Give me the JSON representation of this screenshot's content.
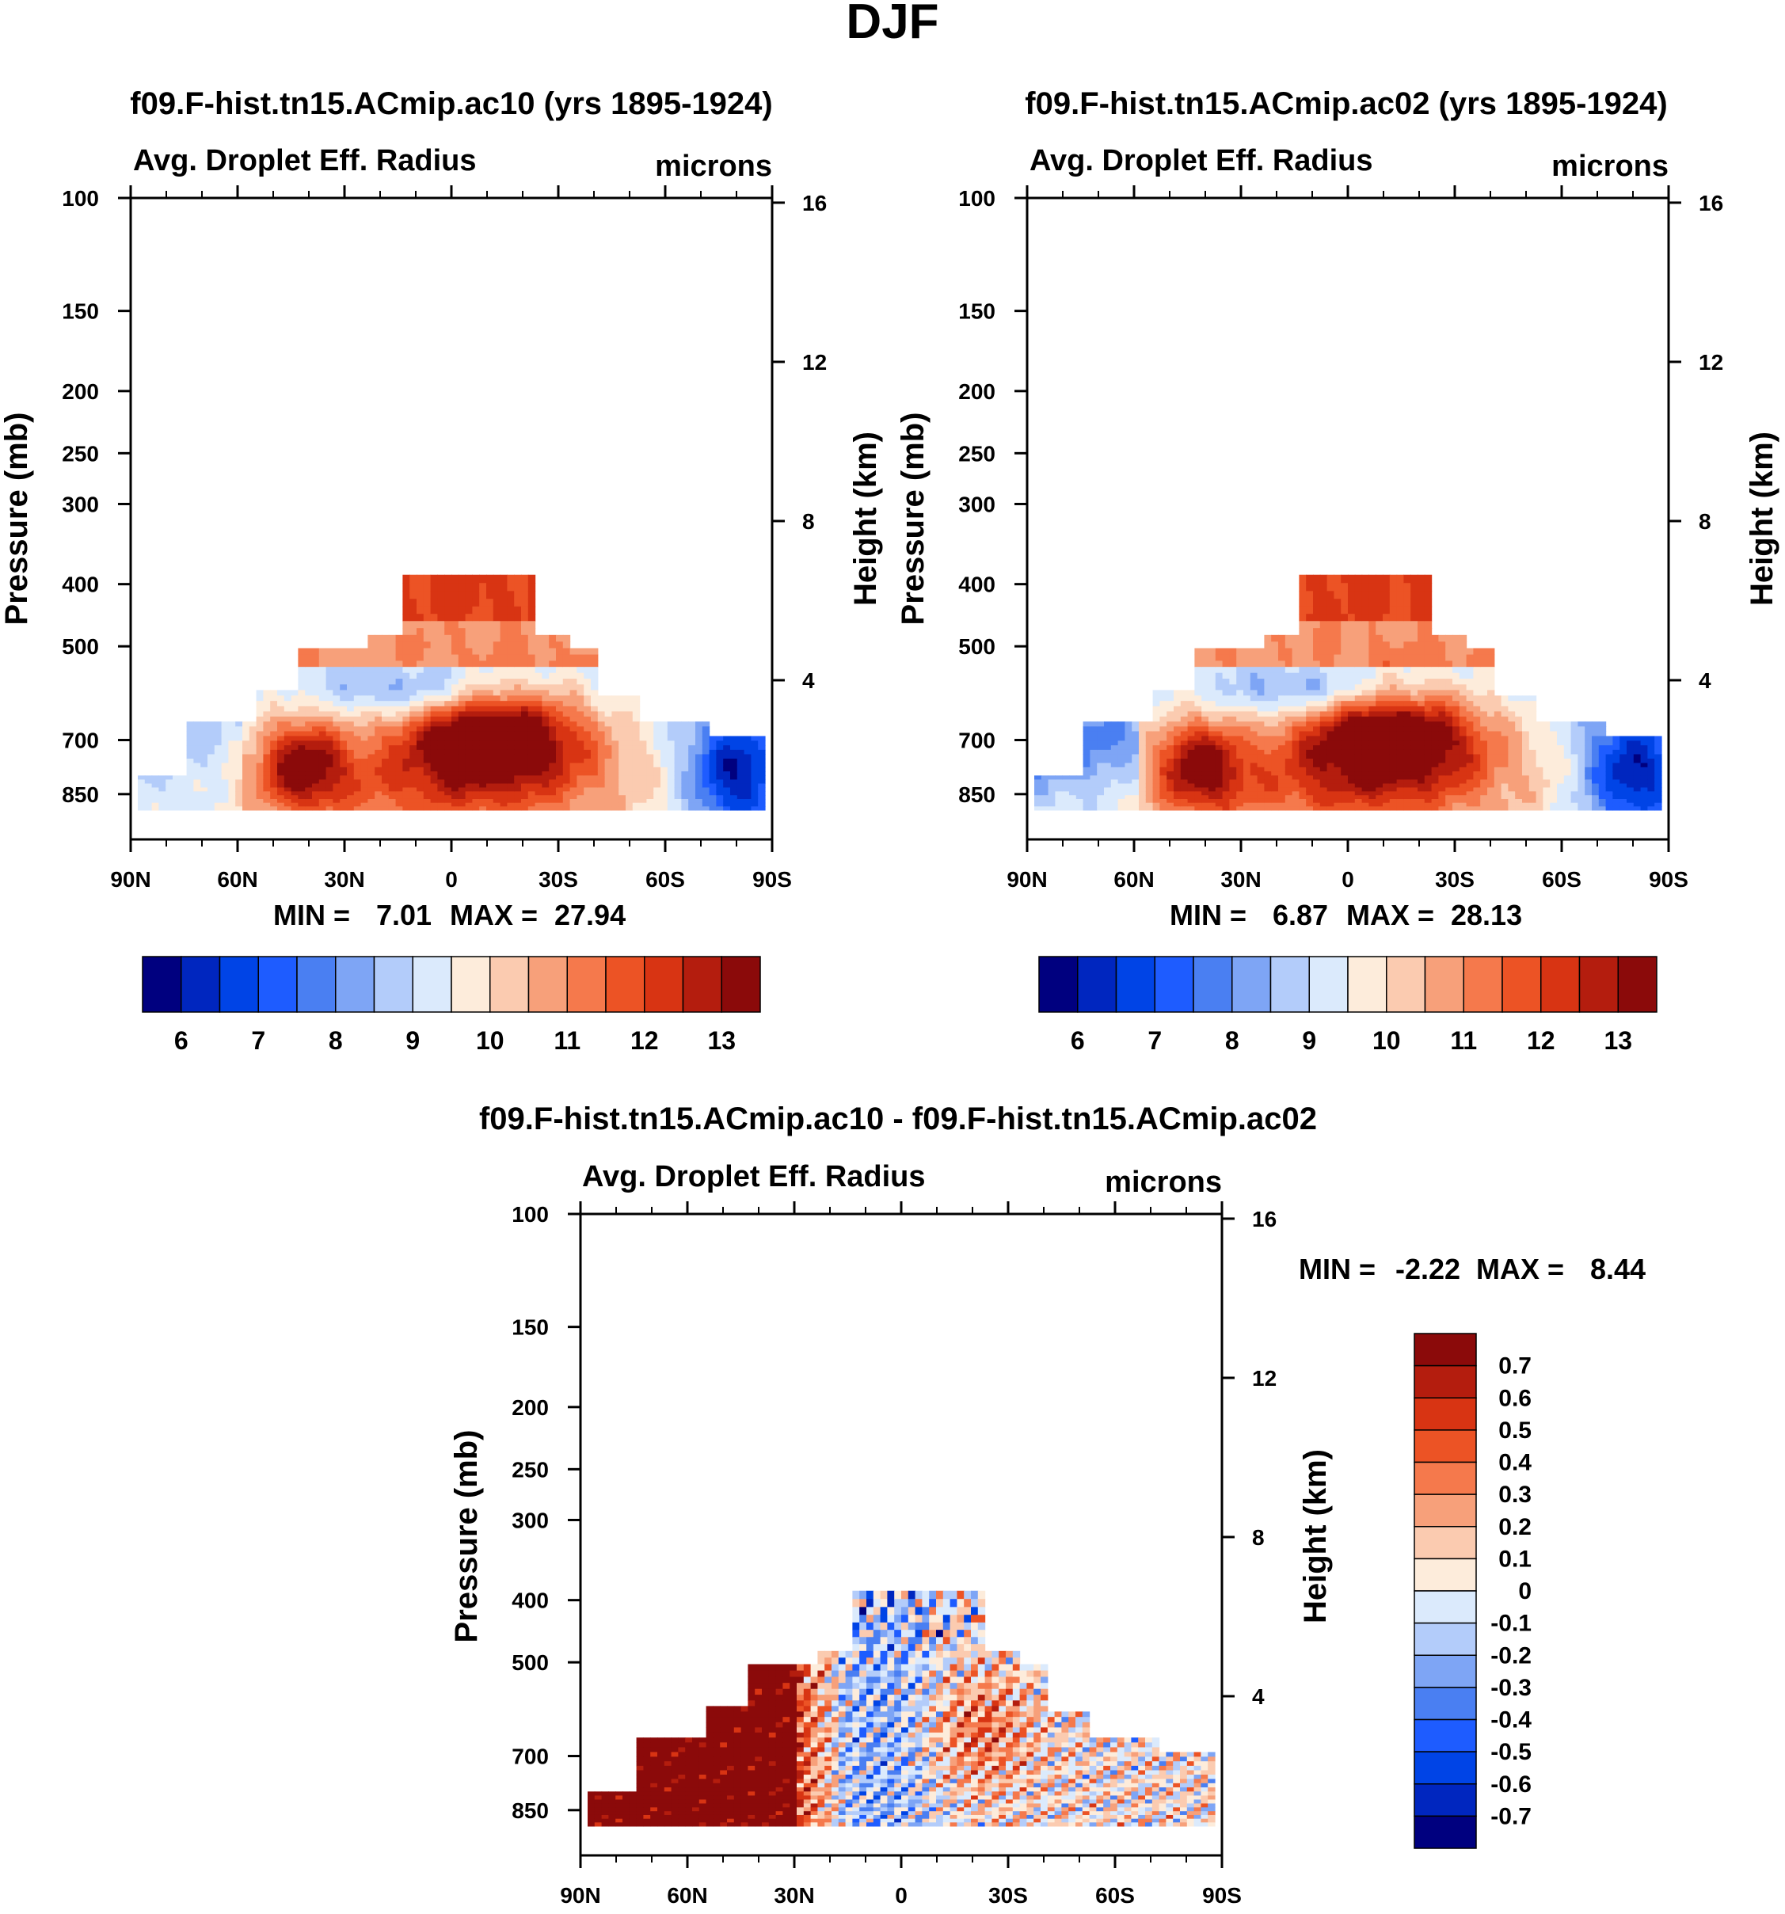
{
  "page_title": "DJF",
  "colors": {
    "ramp_abs": [
      "#00007f",
      "#0026bf",
      "#0044e6",
      "#1e5cff",
      "#4a7ff2",
      "#7ea5f5",
      "#b3ccfa",
      "#dbeafc",
      "#fdecdb",
      "#fbcbb0",
      "#f7a07a",
      "#f5794c",
      "#ec5325",
      "#d83413",
      "#b41d0e",
      "#8b0a0a"
    ],
    "ramp_diff": [
      "#00007f",
      "#0026bf",
      "#0044e6",
      "#1e5cff",
      "#4a7ff2",
      "#7ea5f5",
      "#b3ccfa",
      "#dbeafc",
      "#fdecdb",
      "#fbcbb0",
      "#f7a07a",
      "#f5794c",
      "#ec5325",
      "#d83413",
      "#b41d0e",
      "#8b0a0a"
    ]
  },
  "chart_data": [
    {
      "type": "heatmap",
      "title": "f09.F-hist.tn15.ACmip.ac10 (yrs 1895-1924)",
      "left_title": "Avg. Droplet Eff. Radius",
      "right_title": "microns",
      "ylabel": "Pressure (mb)",
      "y2label": "Height (km)",
      "x_ticks": [
        "90N",
        "60N",
        "30N",
        "0",
        "30S",
        "60S",
        "90S"
      ],
      "y_ticks": [
        "100",
        "150",
        "200",
        "250",
        "300",
        "400",
        "500",
        "700",
        "850"
      ],
      "y2_ticks": [
        "16",
        "12",
        "8",
        "4"
      ],
      "stats": {
        "min_label": "MIN =",
        "min": "7.01",
        "max_label": "MAX =",
        "max": "27.94"
      },
      "colorbar_labels": [
        "6",
        "7",
        "8",
        "9",
        "10",
        "11",
        "12",
        "13"
      ],
      "levels": [
        5.5,
        6,
        6.5,
        7,
        7.5,
        8,
        8.5,
        9,
        9.5,
        10,
        10.5,
        11,
        11.5,
        12,
        12.5,
        13
      ]
    },
    {
      "type": "heatmap",
      "title": "f09.F-hist.tn15.ACmip.ac02 (yrs 1895-1924)",
      "left_title": "Avg. Droplet Eff. Radius",
      "right_title": "microns",
      "ylabel": "Pressure (mb)",
      "y2label": "Height (km)",
      "x_ticks": [
        "90N",
        "60N",
        "30N",
        "0",
        "30S",
        "60S",
        "90S"
      ],
      "y_ticks": [
        "100",
        "150",
        "200",
        "250",
        "300",
        "400",
        "500",
        "700",
        "850"
      ],
      "y2_ticks": [
        "16",
        "12",
        "8",
        "4"
      ],
      "stats": {
        "min_label": "MIN =",
        "min": "6.87",
        "max_label": "MAX =",
        "max": "28.13"
      },
      "colorbar_labels": [
        "6",
        "7",
        "8",
        "9",
        "10",
        "11",
        "12",
        "13"
      ],
      "levels": [
        5.5,
        6,
        6.5,
        7,
        7.5,
        8,
        8.5,
        9,
        9.5,
        10,
        10.5,
        11,
        11.5,
        12,
        12.5,
        13
      ]
    },
    {
      "type": "heatmap",
      "title": "f09.F-hist.tn15.ACmip.ac10 - f09.F-hist.tn15.ACmip.ac02",
      "left_title": "Avg. Droplet Eff. Radius",
      "right_title": "microns",
      "ylabel": "Pressure (mb)",
      "y2label": "Height (km)",
      "x_ticks": [
        "90N",
        "60N",
        "30N",
        "0",
        "30S",
        "60S",
        "90S"
      ],
      "y_ticks": [
        "100",
        "150",
        "200",
        "250",
        "300",
        "400",
        "500",
        "700",
        "850"
      ],
      "y2_ticks": [
        "16",
        "12",
        "8",
        "4"
      ],
      "stats": {
        "min_label": "MIN =",
        "min": "-2.22",
        "max_label": "MAX =",
        "max": "8.44"
      },
      "colorbar_labels": [
        "0.7",
        "0.6",
        "0.5",
        "0.4",
        "0.3",
        "0.2",
        "0.1",
        "0",
        "-0.1",
        "-0.2",
        "-0.3",
        "-0.4",
        "-0.5",
        "-0.6",
        "-0.7"
      ],
      "levels": [
        -0.7,
        -0.6,
        -0.5,
        -0.4,
        -0.3,
        -0.2,
        -0.1,
        0,
        0.1,
        0.2,
        0.3,
        0.4,
        0.5,
        0.6,
        0.7
      ]
    }
  ]
}
